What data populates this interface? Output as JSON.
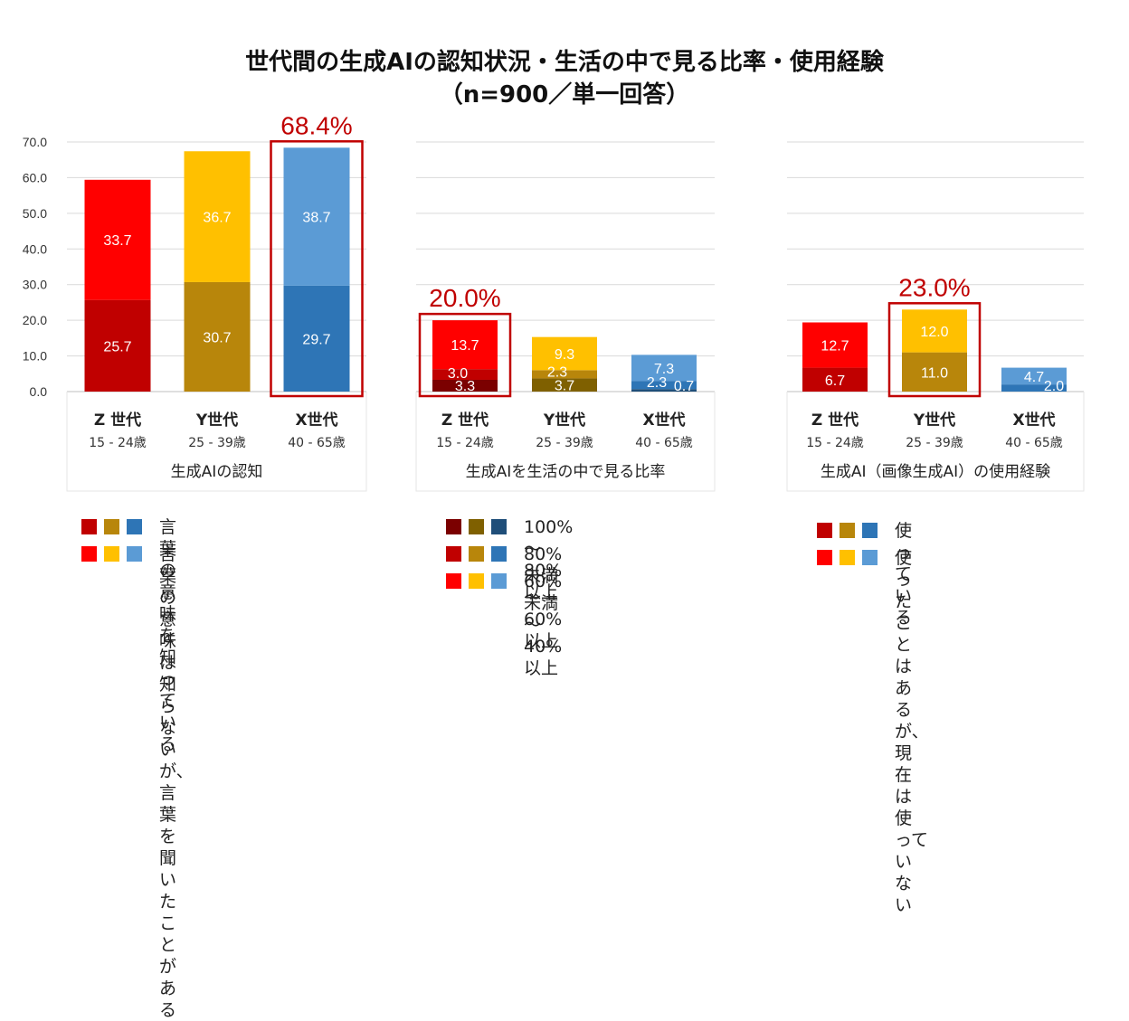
{
  "header": {
    "title": "世代間の生成AIの認知状況・生活の中で見る比率・使用経験",
    "subtitle": "（n=900／単一回答）"
  },
  "chart_data": [
    {
      "type": "bar",
      "stacked": true,
      "panel_label": "生成AIの認知",
      "categories": [
        "Z 世代",
        "Y世代",
        "X世代"
      ],
      "category_ages": [
        "15 - 24歳",
        "25 - 39歳",
        "40 - 65歳"
      ],
      "series": [
        {
          "name": "言葉の意味を知っている",
          "values": [
            25.7,
            30.7,
            29.7
          ],
          "colors": [
            "#c00000",
            "#b8860b",
            "#2e75b6"
          ]
        },
        {
          "name": "言葉の意味は知らないが、\n言葉を聞いたことがある",
          "values": [
            33.7,
            36.7,
            38.7
          ],
          "colors": [
            "#ff0000",
            "#ffc000",
            "#5b9bd5"
          ]
        }
      ],
      "y_ticks": [
        "70.0",
        "60.0",
        "50.0",
        "40.0",
        "30.0",
        "20.0",
        "10.0",
        "0.0"
      ],
      "ylim": [
        0,
        70
      ],
      "grid": true,
      "highlight": {
        "category": "X世代",
        "label": "68.4%"
      }
    },
    {
      "type": "bar",
      "stacked": true,
      "panel_label": "生成AIを生活の中で見る比率",
      "categories": [
        "Z 世代",
        "Y世代",
        "X世代"
      ],
      "category_ages": [
        "15 - 24歳",
        "25 - 39歳",
        "40 - 65歳"
      ],
      "series": [
        {
          "name": "100%～80%以上",
          "values": [
            3.3,
            3.7,
            0.7
          ],
          "colors": [
            "#7b0000",
            "#7f6000",
            "#1f4e79"
          ]
        },
        {
          "name": "80%未満～60%以上",
          "values": [
            3.0,
            2.3,
            2.3
          ],
          "colors": [
            "#c00000",
            "#b8860b",
            "#2e75b6"
          ]
        },
        {
          "name": "60%未満～40%以上",
          "values": [
            13.7,
            9.3,
            7.3
          ],
          "colors": [
            "#ff0000",
            "#ffc000",
            "#5b9bd5"
          ]
        }
      ],
      "ylim": [
        0,
        70
      ],
      "grid": true,
      "highlight": {
        "category": "Z 世代",
        "label": "20.0%"
      }
    },
    {
      "type": "bar",
      "stacked": true,
      "panel_label": "生成AI（画像生成AI）の使用経験",
      "categories": [
        "Z 世代",
        "Y世代",
        "X世代"
      ],
      "category_ages": [
        "15 - 24歳",
        "25 - 39歳",
        "40 - 65歳"
      ],
      "series": [
        {
          "name": "使っている",
          "values": [
            6.7,
            11.0,
            2.0
          ],
          "colors": [
            "#c00000",
            "#b8860b",
            "#2e75b6"
          ]
        },
        {
          "name": "使ったことはあるが、\n現在は使っていない",
          "values": [
            12.7,
            12.0,
            4.7
          ],
          "colors": [
            "#ff0000",
            "#ffc000",
            "#5b9bd5"
          ]
        }
      ],
      "ylim": [
        0,
        70
      ],
      "grid": true,
      "highlight": {
        "category": "Y世代",
        "label": "23.0%"
      }
    }
  ],
  "colors": {
    "highlight_box": "#c00000",
    "grid": "#d9d9d9",
    "axis_text": "#333333"
  }
}
